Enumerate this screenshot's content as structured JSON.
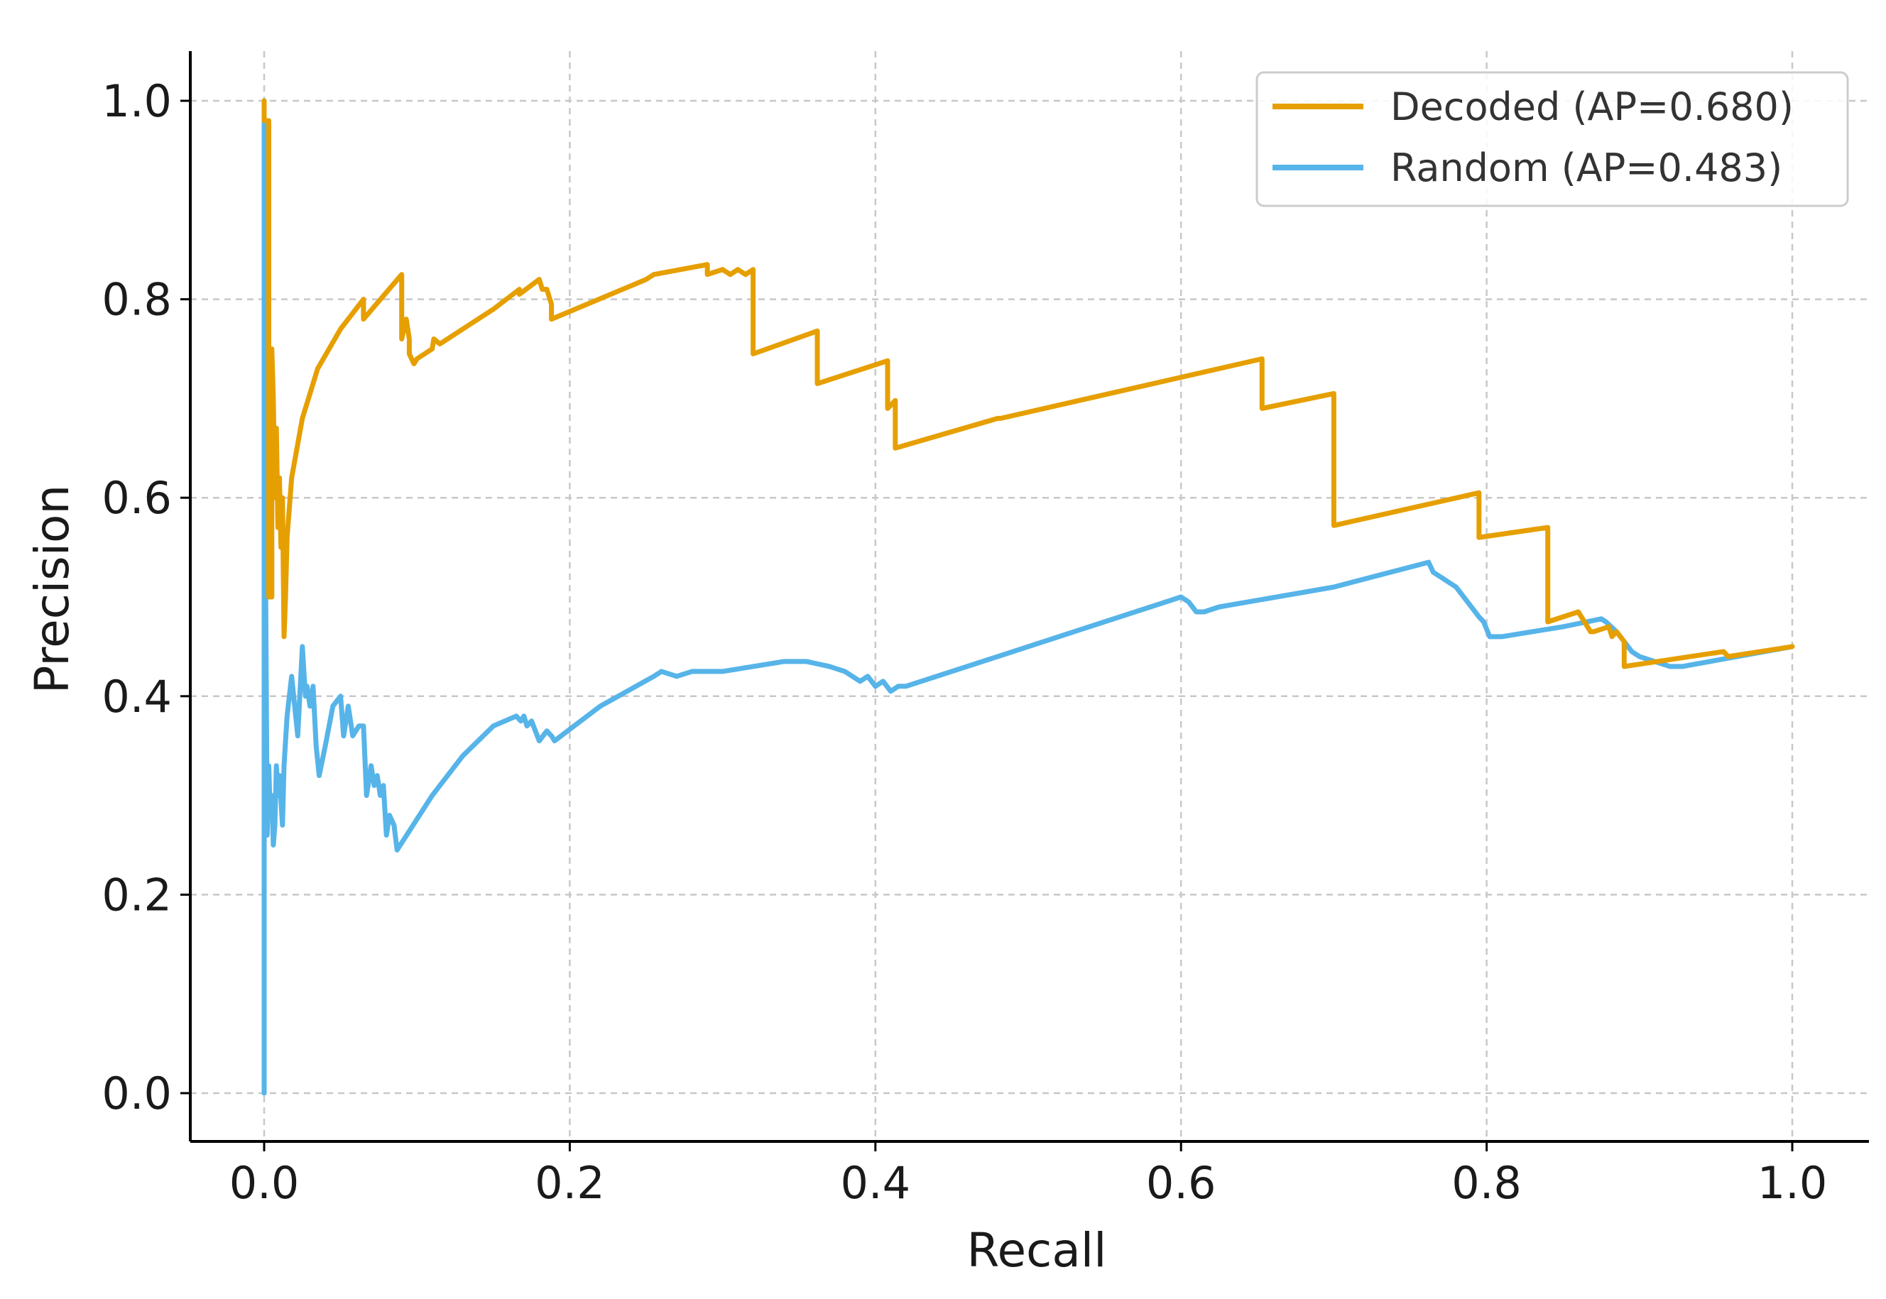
{
  "chart_data": {
    "type": "line",
    "title": "",
    "xlabel": "Recall",
    "ylabel": "Precision",
    "xlim": [
      -0.05,
      1.05
    ],
    "ylim": [
      -0.05,
      1.05
    ],
    "xticks": [
      "0.0",
      "0.2",
      "0.4",
      "0.6",
      "0.8",
      "1.0"
    ],
    "yticks": [
      "0.0",
      "0.2",
      "0.4",
      "0.6",
      "0.8",
      "1.0"
    ],
    "grid": true,
    "legend_position": "top-right",
    "series": [
      {
        "name": "Decoded (AP=0.680)",
        "color": "#E69F00",
        "x": [
          0.0,
          0.0,
          0.003,
          0.003,
          0.005,
          0.005,
          0.006,
          0.007,
          0.008,
          0.009,
          0.01,
          0.011,
          0.012,
          0.013,
          0.014,
          0.015,
          0.018,
          0.025,
          0.035,
          0.05,
          0.065,
          0.065,
          0.09,
          0.09,
          0.093,
          0.095,
          0.095,
          0.098,
          0.1,
          0.11,
          0.111,
          0.115,
          0.13,
          0.15,
          0.167,
          0.167,
          0.18,
          0.182,
          0.185,
          0.188,
          0.188,
          0.25,
          0.255,
          0.29,
          0.29,
          0.3,
          0.305,
          0.31,
          0.315,
          0.32,
          0.32,
          0.362,
          0.362,
          0.408,
          0.408,
          0.413,
          0.413,
          0.48,
          0.482,
          0.653,
          0.653,
          0.7,
          0.7,
          0.795,
          0.795,
          0.84,
          0.84,
          0.85,
          0.86,
          0.868,
          0.87,
          0.88,
          0.882,
          0.885,
          0.89,
          0.89,
          0.955,
          0.958,
          1.0
        ],
        "y": [
          1.0,
          0.98,
          0.98,
          0.5,
          0.5,
          0.75,
          0.7,
          0.6,
          0.67,
          0.57,
          0.62,
          0.55,
          0.6,
          0.46,
          0.5,
          0.56,
          0.62,
          0.68,
          0.73,
          0.77,
          0.8,
          0.78,
          0.825,
          0.76,
          0.78,
          0.76,
          0.745,
          0.735,
          0.74,
          0.75,
          0.76,
          0.755,
          0.77,
          0.79,
          0.81,
          0.805,
          0.82,
          0.81,
          0.81,
          0.795,
          0.78,
          0.82,
          0.825,
          0.835,
          0.825,
          0.83,
          0.825,
          0.83,
          0.825,
          0.83,
          0.745,
          0.768,
          0.715,
          0.738,
          0.69,
          0.698,
          0.65,
          0.68,
          0.68,
          0.74,
          0.69,
          0.705,
          0.572,
          0.605,
          0.56,
          0.57,
          0.475,
          0.48,
          0.485,
          0.465,
          0.465,
          0.47,
          0.46,
          0.465,
          0.455,
          0.43,
          0.445,
          0.44,
          0.45
        ]
      },
      {
        "name": "Random (AP=0.483)",
        "color": "#56B4E9",
        "x": [
          0.0,
          0.0,
          0.0,
          0.001,
          0.002,
          0.003,
          0.004,
          0.005,
          0.006,
          0.007,
          0.008,
          0.009,
          0.01,
          0.012,
          0.013,
          0.015,
          0.018,
          0.022,
          0.025,
          0.027,
          0.028,
          0.03,
          0.032,
          0.034,
          0.036,
          0.04,
          0.045,
          0.05,
          0.052,
          0.055,
          0.058,
          0.062,
          0.065,
          0.067,
          0.07,
          0.072,
          0.074,
          0.076,
          0.078,
          0.08,
          0.082,
          0.085,
          0.087,
          0.11,
          0.13,
          0.15,
          0.165,
          0.168,
          0.17,
          0.172,
          0.175,
          0.18,
          0.185,
          0.188,
          0.19,
          0.22,
          0.255,
          0.26,
          0.27,
          0.28,
          0.3,
          0.32,
          0.34,
          0.345,
          0.355,
          0.37,
          0.38,
          0.39,
          0.395,
          0.4,
          0.405,
          0.41,
          0.415,
          0.42,
          0.48,
          0.53,
          0.6,
          0.605,
          0.61,
          0.615,
          0.625,
          0.7,
          0.762,
          0.765,
          0.77,
          0.775,
          0.78,
          0.785,
          0.79,
          0.795,
          0.798,
          0.802,
          0.81,
          0.85,
          0.875,
          0.878,
          0.885,
          0.89,
          0.895,
          0.9,
          0.91,
          0.92,
          0.928,
          1.0
        ],
        "y": [
          0.0,
          1.0,
          0.25,
          0.5,
          0.26,
          0.33,
          0.28,
          0.3,
          0.25,
          0.27,
          0.33,
          0.3,
          0.32,
          0.27,
          0.33,
          0.38,
          0.42,
          0.36,
          0.45,
          0.4,
          0.41,
          0.39,
          0.41,
          0.35,
          0.32,
          0.35,
          0.39,
          0.4,
          0.36,
          0.39,
          0.36,
          0.37,
          0.37,
          0.3,
          0.33,
          0.31,
          0.32,
          0.3,
          0.31,
          0.26,
          0.28,
          0.27,
          0.245,
          0.3,
          0.34,
          0.37,
          0.38,
          0.375,
          0.38,
          0.37,
          0.375,
          0.355,
          0.365,
          0.36,
          0.355,
          0.39,
          0.42,
          0.425,
          0.42,
          0.425,
          0.425,
          0.43,
          0.435,
          0.435,
          0.435,
          0.43,
          0.425,
          0.415,
          0.42,
          0.41,
          0.415,
          0.405,
          0.41,
          0.41,
          0.44,
          0.465,
          0.5,
          0.495,
          0.485,
          0.485,
          0.49,
          0.51,
          0.535,
          0.525,
          0.52,
          0.515,
          0.51,
          0.5,
          0.49,
          0.48,
          0.475,
          0.46,
          0.46,
          0.47,
          0.478,
          0.475,
          0.465,
          0.455,
          0.445,
          0.44,
          0.435,
          0.43,
          0.43,
          0.45
        ]
      }
    ]
  }
}
